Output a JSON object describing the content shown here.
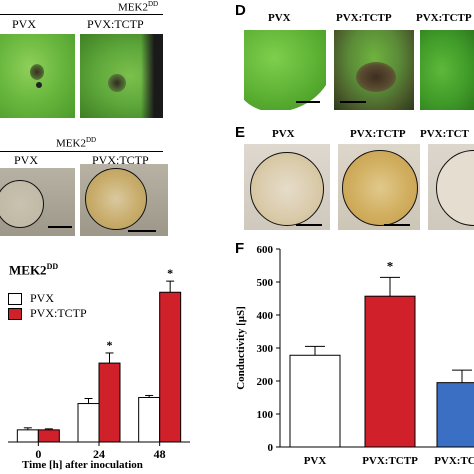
{
  "panelA": {
    "header": "MEK2",
    "header_sup": "DD",
    "labels": [
      "PVX",
      "PVX:TCTP"
    ]
  },
  "panelB": {
    "header": "MEK2",
    "header_sup": "DD",
    "labels": [
      "PVX",
      "PVX:TCTP"
    ]
  },
  "panelC": {
    "title": "MEK2",
    "title_sup": "DD",
    "legend": [
      "PVX",
      "PVX:TCTP"
    ],
    "xlabel": "Time [h] after inoculation",
    "star": "*"
  },
  "panelD": {
    "letter": "D",
    "labels": [
      "PVX",
      "PVX:TCTP",
      "PVX:TCTP"
    ]
  },
  "panelE": {
    "letter": "E",
    "labels": [
      "PVX",
      "PVX:TCTP",
      "PVX:TCT"
    ]
  },
  "panelF": {
    "letter": "F",
    "star": "*"
  },
  "colors": {
    "pvx": "#ffffff",
    "tctp": "#d0202a",
    "third": "#3a6fc4"
  },
  "chart_data": [
    {
      "type": "bar",
      "title": "MEK2DD",
      "xlabel": "Time [h] after inoculation",
      "ylabel": "",
      "categories": [
        "0",
        "24",
        "48"
      ],
      "series": [
        {
          "name": "PVX",
          "values": [
            0.6,
            1.9,
            2.2
          ],
          "errors": [
            0.1,
            0.25,
            0.1
          ]
        },
        {
          "name": "PVX:TCTP",
          "values": [
            0.6,
            3.9,
            7.4
          ],
          "errors": [
            0.05,
            0.5,
            0.55
          ]
        }
      ],
      "significance": [
        "",
        "*",
        "*"
      ],
      "ylim": [
        0,
        8.5
      ]
    },
    {
      "type": "bar",
      "title": "",
      "xlabel": "",
      "ylabel": "Conductivity [μS]",
      "categories": [
        "PVX",
        "PVX:TCTP",
        "PVX:TCTP"
      ],
      "values": [
        278,
        457,
        195
      ],
      "errors": [
        27,
        57,
        38
      ],
      "colors": [
        "#ffffff",
        "#d0202a",
        "#3a6fc4"
      ],
      "significance": [
        "",
        "*",
        ""
      ],
      "yticks": [
        0,
        100,
        200,
        300,
        400,
        500,
        600
      ],
      "ylim": [
        0,
        600
      ]
    }
  ]
}
